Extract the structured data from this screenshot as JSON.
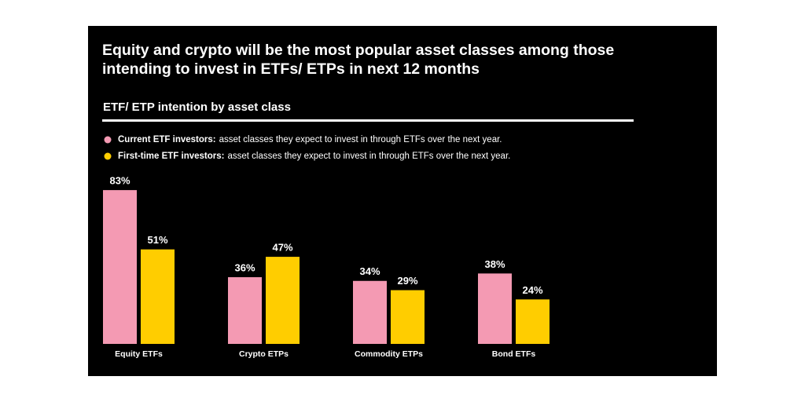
{
  "chart_data": {
    "type": "bar",
    "title": "Equity and crypto will be the most popular asset classes among those intending to invest in ETFs/ ETPs in next 12 months",
    "subtitle": "ETF/ ETP intention by asset class",
    "categories": [
      "Equity ETFs",
      "Crypto ETPs",
      "Commodity ETPs",
      "Bond ETFs"
    ],
    "series": [
      {
        "name": "Current ETF investors:",
        "description": "asset classes they expect to invest in through ETFs over the next year.",
        "color": "#f49ab3",
        "values": [
          83,
          36,
          34,
          38
        ],
        "value_labels": [
          "83%",
          "36%",
          "34%",
          "38%"
        ]
      },
      {
        "name": "First-time ETF investors:",
        "description": "asset classes they expect to invest in through ETFs over the next year.",
        "color": "#ffcd00",
        "values": [
          51,
          47,
          29,
          24
        ],
        "value_labels": [
          "51%",
          "47%",
          "29%",
          "24%"
        ]
      }
    ],
    "ylim": [
      0,
      100
    ]
  }
}
